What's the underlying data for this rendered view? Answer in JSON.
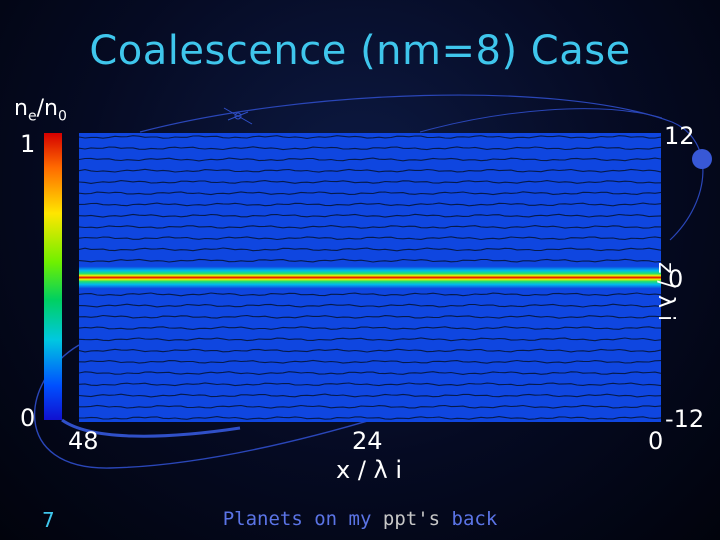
{
  "slide": {
    "title": "Coalescence (nm=8) Case",
    "number": "7",
    "footer_prefix": "Planets on my ",
    "footer_highlight": "ppt's",
    "footer_suffix": " back"
  },
  "colorbar": {
    "label_main": "n",
    "label_sub_e": "e",
    "label_slash": "/n",
    "label_sub_0": "0",
    "max_label": "1",
    "min_label": "0",
    "colors": [
      "#d40000",
      "#ff6a00",
      "#ffe600",
      "#6ff000",
      "#00d060",
      "#00c8e0",
      "#0050ff",
      "#1010d0"
    ]
  },
  "chart_data": {
    "type": "heatmap",
    "title": "Coalescence (nm=8) Case",
    "xlabel": "x / λ i",
    "ylabel": "z / λ i",
    "x_ticks": [
      "48",
      "24",
      "0"
    ],
    "y_ticks": [
      "12",
      "0",
      "-12"
    ],
    "xlim": [
      48,
      0
    ],
    "ylim": [
      -12,
      12
    ],
    "colorbar_label": "ne/n0",
    "colorbar_range": [
      0,
      1
    ],
    "background_value": 0.12,
    "band": {
      "z_center": 0,
      "peak_value": 1
    },
    "contour_lines": 26
  }
}
